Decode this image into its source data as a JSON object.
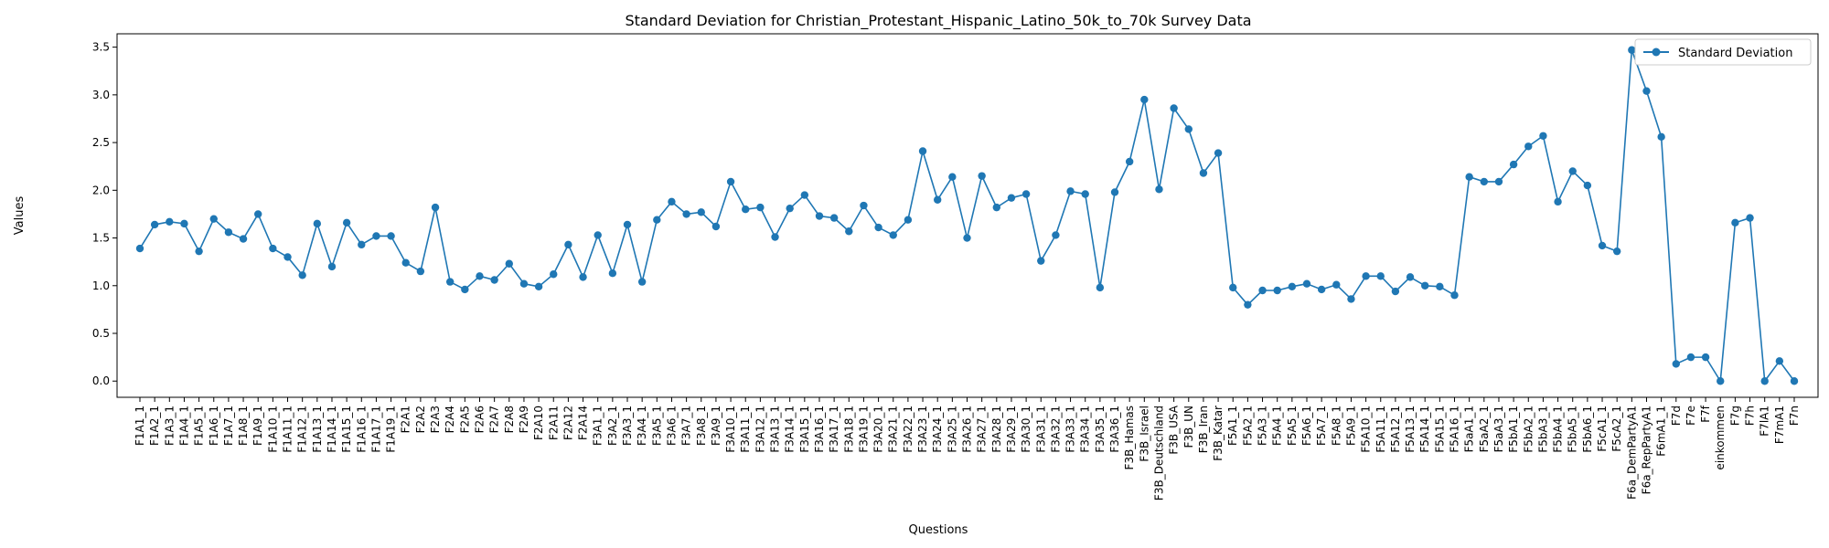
{
  "chart_data": {
    "type": "line",
    "title": "Standard Deviation for Christian_Protestant_Hispanic_Latino_50k_to_70k Survey Data",
    "xlabel": "Questions",
    "ylabel": "Values",
    "ylim": [
      -0.17,
      3.64
    ],
    "yticks": [
      0.0,
      0.5,
      1.0,
      1.5,
      2.0,
      2.5,
      3.0,
      3.5
    ],
    "yticklabels": [
      "0.0",
      "0.5",
      "1.0",
      "1.5",
      "2.0",
      "2.5",
      "3.0",
      "3.5"
    ],
    "grid": false,
    "legend_position": "top-right",
    "series_color": "#1f77b4",
    "categories": [
      "F1A1_1",
      "F1A2_1",
      "F1A3_1",
      "F1A4_1",
      "F1A5_1",
      "F1A6_1",
      "F1A7_1",
      "F1A8_1",
      "F1A9_1",
      "F1A10_1",
      "F1A11_1",
      "F1A12_1",
      "F1A13_1",
      "F1A14_1",
      "F1A15_1",
      "F1A16_1",
      "F1A17_1",
      "F1A19_1",
      "F2A1",
      "F2A2",
      "F2A3",
      "F2A4",
      "F2A5",
      "F2A6",
      "F2A7",
      "F2A8",
      "F2A9",
      "F2A10",
      "F2A11",
      "F2A12",
      "F2A14",
      "F3A1_1",
      "F3A2_1",
      "F3A3_1",
      "F3A4_1",
      "F3A5_1",
      "F3A6_1",
      "F3A7_1",
      "F3A8_1",
      "F3A9_1",
      "F3A10_1",
      "F3A11_1",
      "F3A12_1",
      "F3A13_1",
      "F3A14_1",
      "F3A15_1",
      "F3A16_1",
      "F3A17_1",
      "F3A18_1",
      "F3A19_1",
      "F3A20_1",
      "F3A21_1",
      "F3A22_1",
      "F3A23_1",
      "F3A24_1",
      "F3A25_1",
      "F3A26_1",
      "F3A27_1",
      "F3A28_1",
      "F3A29_1",
      "F3A30_1",
      "F3A31_1",
      "F3A32_1",
      "F3A33_1",
      "F3A34_1",
      "F3A35_1",
      "F3A36_1",
      "F3B_Hamas",
      "F3B_Israel",
      "F3B_Deutschland",
      "F3B_USA",
      "F3B_UN",
      "F3B_Iran",
      "F3B_Katar",
      "F5A1_1",
      "F5A2_1",
      "F5A3_1",
      "F5A4_1",
      "F5A5_1",
      "F5A6_1",
      "F5A7_1",
      "F5A8_1",
      "F5A9_1",
      "F5A10_1",
      "F5A11_1",
      "F5A12_1",
      "F5A13_1",
      "F5A14_1",
      "F5A15_1",
      "F5A16_1",
      "F5aA1_1",
      "F5aA2_1",
      "F5aA3_1",
      "F5bA1_1",
      "F5bA2_1",
      "F5bA3_1",
      "F5bA4_1",
      "F5bA5_1",
      "F5bA6_1",
      "F5cA1_1",
      "F5cA2_1",
      "F6a_DemPartyA1",
      "F6a_RepPartyA1",
      "F6mA1_1",
      "F7d",
      "F7e",
      "F7f",
      "einkommen",
      "F7g",
      "F7h",
      "F7lA1",
      "F7mA1",
      "F7n"
    ],
    "series": [
      {
        "name": "Standard Deviation",
        "values": [
          1.39,
          1.64,
          1.67,
          1.65,
          1.36,
          1.7,
          1.56,
          1.49,
          1.75,
          1.39,
          1.3,
          1.11,
          1.65,
          1.2,
          1.66,
          1.43,
          1.52,
          1.52,
          1.24,
          1.15,
          1.82,
          1.04,
          0.96,
          1.1,
          1.06,
          1.23,
          1.02,
          0.99,
          1.12,
          1.43,
          1.09,
          1.53,
          1.13,
          1.64,
          1.04,
          1.69,
          1.88,
          1.75,
          1.77,
          1.62,
          2.09,
          1.8,
          1.82,
          1.51,
          1.81,
          1.95,
          1.73,
          1.71,
          1.57,
          1.84,
          1.61,
          1.53,
          1.69,
          2.41,
          1.9,
          2.14,
          1.5,
          2.15,
          1.82,
          1.92,
          1.96,
          1.26,
          1.53,
          1.99,
          1.96,
          0.98,
          1.98,
          2.3,
          2.95,
          2.01,
          2.86,
          2.64,
          2.18,
          2.39,
          0.98,
          0.8,
          0.95,
          0.95,
          0.99,
          1.02,
          0.96,
          1.01,
          0.86,
          1.1,
          1.1,
          0.94,
          1.09,
          1.0,
          0.99,
          0.9,
          2.14,
          2.09,
          2.09,
          2.27,
          2.46,
          2.57,
          1.88,
          2.2,
          2.05,
          1.42,
          1.36,
          3.47,
          3.04,
          2.56,
          0.18,
          0.25,
          0.25,
          0.0,
          1.66,
          1.71,
          0.0,
          0.21,
          0.0
        ]
      }
    ]
  }
}
